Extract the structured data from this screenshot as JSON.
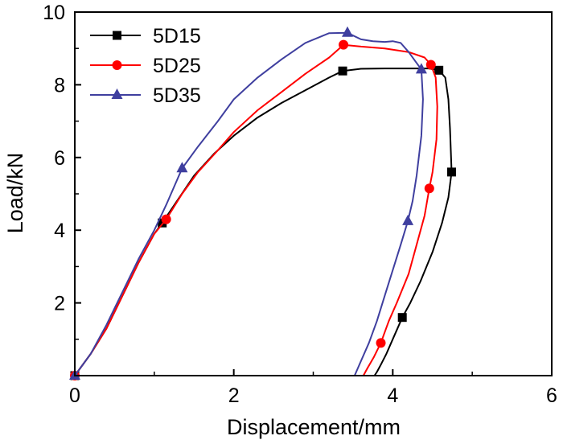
{
  "chart_data": {
    "type": "line",
    "title": "",
    "xlabel": "Displacement/mm",
    "ylabel": "Load/kN",
    "xlim": [
      0,
      6
    ],
    "ylim": [
      0,
      10
    ],
    "x_ticks": [
      "0",
      "2",
      "4",
      "6"
    ],
    "y_ticks": [
      "2",
      "4",
      "6",
      "8",
      "10"
    ],
    "grid": false,
    "legend_position": "top-left",
    "series": [
      {
        "name": "5D15",
        "color": "#000000",
        "marker": "square",
        "x": [
          0,
          0.2,
          0.4,
          0.6,
          0.8,
          1.0,
          1.1,
          1.3,
          1.5,
          1.75,
          2.0,
          2.3,
          2.6,
          2.9,
          3.2,
          3.37,
          3.6,
          3.9,
          4.2,
          4.45,
          4.58,
          4.66,
          4.7,
          4.72,
          4.74,
          4.7,
          4.62,
          4.5,
          4.35,
          4.22,
          4.12,
          4.0,
          3.92,
          3.85,
          3.8,
          3.77
        ],
        "y": [
          0,
          0.6,
          1.3,
          2.2,
          3.1,
          3.9,
          4.2,
          4.85,
          5.5,
          6.1,
          6.6,
          7.1,
          7.5,
          7.85,
          8.2,
          8.38,
          8.44,
          8.45,
          8.45,
          8.45,
          8.4,
          8.2,
          7.6,
          6.8,
          5.6,
          4.9,
          4.2,
          3.4,
          2.6,
          2.0,
          1.6,
          1.0,
          0.6,
          0.3,
          0.1,
          0.0
        ],
        "markers_x": [
          0,
          1.1,
          3.37,
          4.58,
          4.74,
          4.12
        ],
        "markers_y": [
          0,
          4.2,
          8.38,
          8.4,
          5.6,
          1.6
        ]
      },
      {
        "name": "5D25",
        "color": "#ff0000",
        "marker": "circle",
        "x": [
          0,
          0.2,
          0.4,
          0.6,
          0.8,
          1.0,
          1.15,
          1.35,
          1.55,
          1.8,
          2.0,
          2.3,
          2.6,
          2.9,
          3.2,
          3.38,
          3.6,
          3.9,
          4.2,
          4.4,
          4.48,
          4.54,
          4.56,
          4.55,
          4.5,
          4.46,
          4.4,
          4.3,
          4.2,
          4.05,
          3.95,
          3.85,
          3.76,
          3.68,
          3.63
        ],
        "y": [
          0,
          0.6,
          1.3,
          2.2,
          3.1,
          3.9,
          4.3,
          5.0,
          5.6,
          6.2,
          6.7,
          7.3,
          7.8,
          8.3,
          8.75,
          9.1,
          9.05,
          9.0,
          8.9,
          8.75,
          8.55,
          8.2,
          7.4,
          6.5,
          5.6,
          5.15,
          4.4,
          3.6,
          2.8,
          2.0,
          1.5,
          0.9,
          0.5,
          0.2,
          0.0
        ],
        "markers_x": [
          0,
          1.15,
          3.38,
          4.48,
          4.46,
          3.85
        ],
        "markers_y": [
          0,
          4.3,
          9.1,
          8.55,
          5.15,
          0.9
        ]
      },
      {
        "name": "5D35",
        "color": "#3f3f9f",
        "marker": "triangle",
        "x": [
          0,
          0.2,
          0.4,
          0.6,
          0.8,
          1.0,
          1.15,
          1.35,
          1.55,
          1.8,
          2.0,
          2.3,
          2.6,
          2.9,
          3.2,
          3.43,
          3.6,
          3.75,
          3.9,
          4.0,
          4.1,
          4.2,
          4.3,
          4.36,
          4.38,
          4.36,
          4.3,
          4.25,
          4.19,
          4.1,
          4.0,
          3.9,
          3.8,
          3.7,
          3.6,
          3.52
        ],
        "y": [
          0,
          0.6,
          1.4,
          2.3,
          3.2,
          4.0,
          4.7,
          5.7,
          6.3,
          7.0,
          7.6,
          8.2,
          8.7,
          9.15,
          9.42,
          9.43,
          9.25,
          9.2,
          9.18,
          9.2,
          9.15,
          8.9,
          8.6,
          8.42,
          7.6,
          6.6,
          5.5,
          4.8,
          4.25,
          3.6,
          2.9,
          2.2,
          1.5,
          0.9,
          0.4,
          0.0
        ],
        "markers_x": [
          0,
          1.35,
          3.43,
          4.36,
          4.19
        ],
        "markers_y": [
          0,
          5.7,
          9.43,
          8.42,
          4.25
        ]
      }
    ]
  }
}
